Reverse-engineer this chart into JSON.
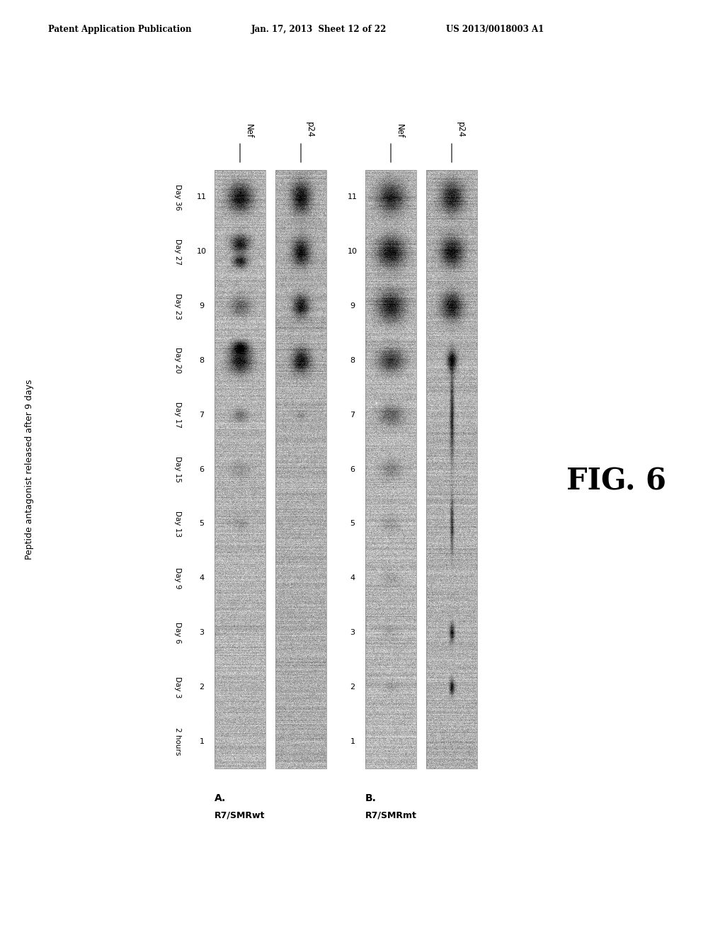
{
  "header_left": "Patent Application Publication",
  "header_mid": "Jan. 17, 2013  Sheet 12 of 22",
  "header_right": "US 2013/0018003 A1",
  "fig_label": "FIG. 6",
  "y_axis_label": "Peptide antagonist released after 9 days",
  "lane_labels": [
    "2 hours",
    "Day 3",
    "Day 6",
    "Day 9",
    "Day 13",
    "Day 15",
    "Day 17",
    "Day 20",
    "Day 23",
    "Day 27",
    "Day 36"
  ],
  "lane_numbers": [
    "1",
    "2",
    "3",
    "4",
    "5",
    "6",
    "7",
    "8",
    "9",
    "10",
    "11"
  ],
  "panel_A_label": "A.",
  "panel_A_sublabel": "R7/SMRwt",
  "panel_B_label": "B.",
  "panel_B_sublabel": "R7/SMRmt",
  "nef_label": "Nef",
  "p24_label": "p24",
  "background_color": "#ffffff",
  "gel_bg_A_nef": "#c0b8b0",
  "gel_bg_A_p24": "#b8b0a8",
  "gel_bg_B_nef": "#c8c0b8",
  "gel_bg_B_p24": "#c0b8b0"
}
